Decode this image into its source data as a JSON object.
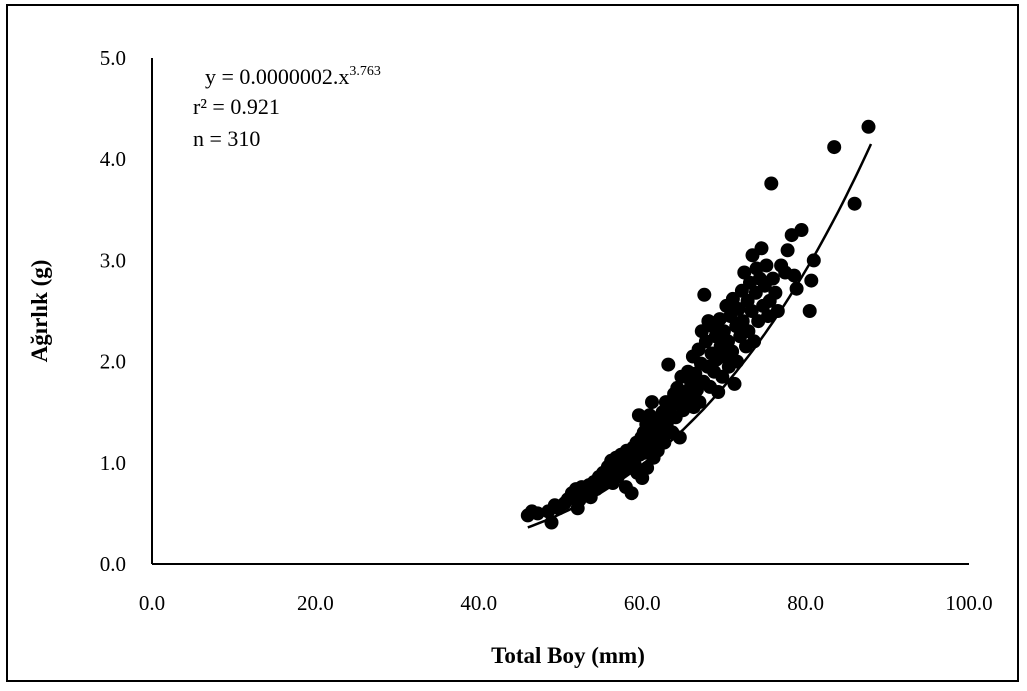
{
  "chart_data": {
    "type": "scatter",
    "title": "",
    "xlabel": "Total Boy (mm)",
    "ylabel": "Ağırlık (g)",
    "xlim": [
      0,
      100
    ],
    "ylim": [
      0,
      5
    ],
    "xticks": [
      "0.0",
      "20.0",
      "40.0",
      "60.0",
      "80.0",
      "100.0"
    ],
    "yticks": [
      "0.0",
      "1.0",
      "2.0",
      "3.0",
      "4.0",
      "5.0"
    ],
    "grid": false,
    "legend": "none",
    "marker_color": "#000000",
    "annotations": {
      "equation_base": "y = 0.0000002.x",
      "equation_exponent": "3.763",
      "r_squared": "r² = 0.921",
      "n": "n = 310"
    },
    "trendline": {
      "type": "power",
      "a": 2e-07,
      "b": 3.763,
      "x_range": [
        46,
        88
      ]
    },
    "series": [
      {
        "points": [
          [
            46.0,
            0.48
          ],
          [
            46.5,
            0.52
          ],
          [
            47.2,
            0.5
          ],
          [
            48.5,
            0.52
          ],
          [
            48.9,
            0.41
          ],
          [
            49.3,
            0.58
          ],
          [
            49.8,
            0.55
          ],
          [
            50.5,
            0.6
          ],
          [
            50.9,
            0.64
          ],
          [
            51.4,
            0.7
          ],
          [
            51.9,
            0.74
          ],
          [
            52.1,
            0.55
          ],
          [
            52.3,
            0.63
          ],
          [
            52.6,
            0.76
          ],
          [
            52.8,
            0.68
          ],
          [
            53.2,
            0.72
          ],
          [
            53.5,
            0.78
          ],
          [
            53.7,
            0.66
          ],
          [
            54.1,
            0.81
          ],
          [
            54.4,
            0.74
          ],
          [
            54.7,
            0.86
          ],
          [
            55.0,
            0.79
          ],
          [
            55.2,
            0.9
          ],
          [
            55.5,
            0.84
          ],
          [
            55.8,
            0.96
          ],
          [
            56.0,
            0.88
          ],
          [
            56.2,
            1.02
          ],
          [
            56.4,
            0.8
          ],
          [
            56.6,
            0.93
          ],
          [
            56.8,
            1.05
          ],
          [
            57.0,
            0.86
          ],
          [
            57.2,
            0.98
          ],
          [
            57.4,
            1.08
          ],
          [
            57.6,
            0.92
          ],
          [
            57.8,
            1.03
          ],
          [
            58.0,
            0.76
          ],
          [
            58.1,
            1.12
          ],
          [
            58.3,
            0.95
          ],
          [
            58.5,
            1.06
          ],
          [
            58.7,
            0.7
          ],
          [
            58.9,
            1.15
          ],
          [
            59.1,
            0.98
          ],
          [
            59.3,
            1.2
          ],
          [
            59.4,
            0.9
          ],
          [
            59.6,
            1.47
          ],
          [
            59.7,
            1.08
          ],
          [
            59.9,
            1.25
          ],
          [
            60.0,
            0.85
          ],
          [
            60.2,
            1.3
          ],
          [
            60.3,
            1.1
          ],
          [
            60.5,
            1.38
          ],
          [
            60.6,
            0.95
          ],
          [
            60.8,
            1.18
          ],
          [
            60.9,
            1.47
          ],
          [
            61.1,
            1.26
          ],
          [
            61.2,
            1.6
          ],
          [
            61.4,
            1.05
          ],
          [
            61.5,
            1.35
          ],
          [
            61.7,
            1.22
          ],
          [
            61.9,
            1.12
          ],
          [
            62.1,
            1.42
          ],
          [
            62.3,
            1.3
          ],
          [
            62.5,
            1.5
          ],
          [
            62.7,
            1.2
          ],
          [
            62.9,
            1.6
          ],
          [
            63.0,
            1.38
          ],
          [
            63.2,
            1.97
          ],
          [
            63.3,
            1.48
          ],
          [
            63.5,
            1.56
          ],
          [
            63.7,
            1.3
          ],
          [
            63.9,
            1.68
          ],
          [
            64.1,
            1.45
          ],
          [
            64.3,
            1.74
          ],
          [
            64.5,
            1.62
          ],
          [
            64.6,
            1.25
          ],
          [
            64.8,
            1.85
          ],
          [
            65.0,
            1.52
          ],
          [
            65.2,
            1.7
          ],
          [
            65.4,
            1.58
          ],
          [
            65.6,
            1.9
          ],
          [
            65.8,
            1.65
          ],
          [
            66.0,
            1.78
          ],
          [
            66.2,
            2.05
          ],
          [
            66.3,
            1.55
          ],
          [
            66.5,
            1.88
          ],
          [
            66.7,
            1.72
          ],
          [
            66.9,
            2.12
          ],
          [
            67.0,
            1.6
          ],
          [
            67.2,
            1.98
          ],
          [
            67.3,
            2.3
          ],
          [
            67.5,
            1.8
          ],
          [
            67.6,
            2.66
          ],
          [
            67.8,
            2.2
          ],
          [
            68.0,
            1.95
          ],
          [
            68.1,
            2.4
          ],
          [
            68.3,
            1.75
          ],
          [
            68.5,
            2.08
          ],
          [
            68.6,
            2.35
          ],
          [
            68.8,
            1.9
          ],
          [
            69.0,
            2.25
          ],
          [
            69.1,
            2.02
          ],
          [
            69.3,
            1.7
          ],
          [
            69.5,
            2.42
          ],
          [
            69.6,
            2.15
          ],
          [
            69.8,
            1.85
          ],
          [
            70.0,
            2.3
          ],
          [
            70.1,
            2.05
          ],
          [
            70.3,
            2.55
          ],
          [
            70.5,
            2.2
          ],
          [
            70.6,
            1.95
          ],
          [
            70.8,
            2.45
          ],
          [
            71.0,
            2.1
          ],
          [
            71.1,
            2.62
          ],
          [
            71.3,
            1.78
          ],
          [
            71.5,
            2.35
          ],
          [
            71.6,
            2.0
          ],
          [
            71.8,
            2.52
          ],
          [
            72.0,
            2.25
          ],
          [
            72.2,
            2.7
          ],
          [
            72.3,
            2.4
          ],
          [
            72.5,
            2.88
          ],
          [
            72.7,
            2.15
          ],
          [
            72.9,
            2.6
          ],
          [
            73.0,
            2.3
          ],
          [
            73.2,
            2.78
          ],
          [
            73.4,
            2.5
          ],
          [
            73.5,
            3.05
          ],
          [
            73.7,
            2.2
          ],
          [
            73.9,
            2.68
          ],
          [
            74.0,
            2.92
          ],
          [
            74.2,
            2.4
          ],
          [
            74.4,
            2.82
          ],
          [
            74.6,
            3.12
          ],
          [
            74.8,
            2.55
          ],
          [
            75.0,
            2.75
          ],
          [
            75.2,
            2.95
          ],
          [
            75.4,
            2.45
          ],
          [
            75.6,
            2.6
          ],
          [
            75.8,
            3.76
          ],
          [
            76.0,
            2.82
          ],
          [
            76.3,
            2.68
          ],
          [
            76.6,
            2.5
          ],
          [
            77.0,
            2.95
          ],
          [
            77.5,
            2.88
          ],
          [
            77.8,
            3.1
          ],
          [
            78.3,
            3.25
          ],
          [
            78.6,
            2.85
          ],
          [
            78.9,
            2.72
          ],
          [
            79.5,
            3.3
          ],
          [
            80.5,
            2.5
          ],
          [
            80.7,
            2.8
          ],
          [
            81.0,
            3.0
          ],
          [
            83.5,
            4.12
          ],
          [
            86.0,
            3.56
          ],
          [
            87.7,
            4.32
          ]
        ]
      }
    ]
  }
}
